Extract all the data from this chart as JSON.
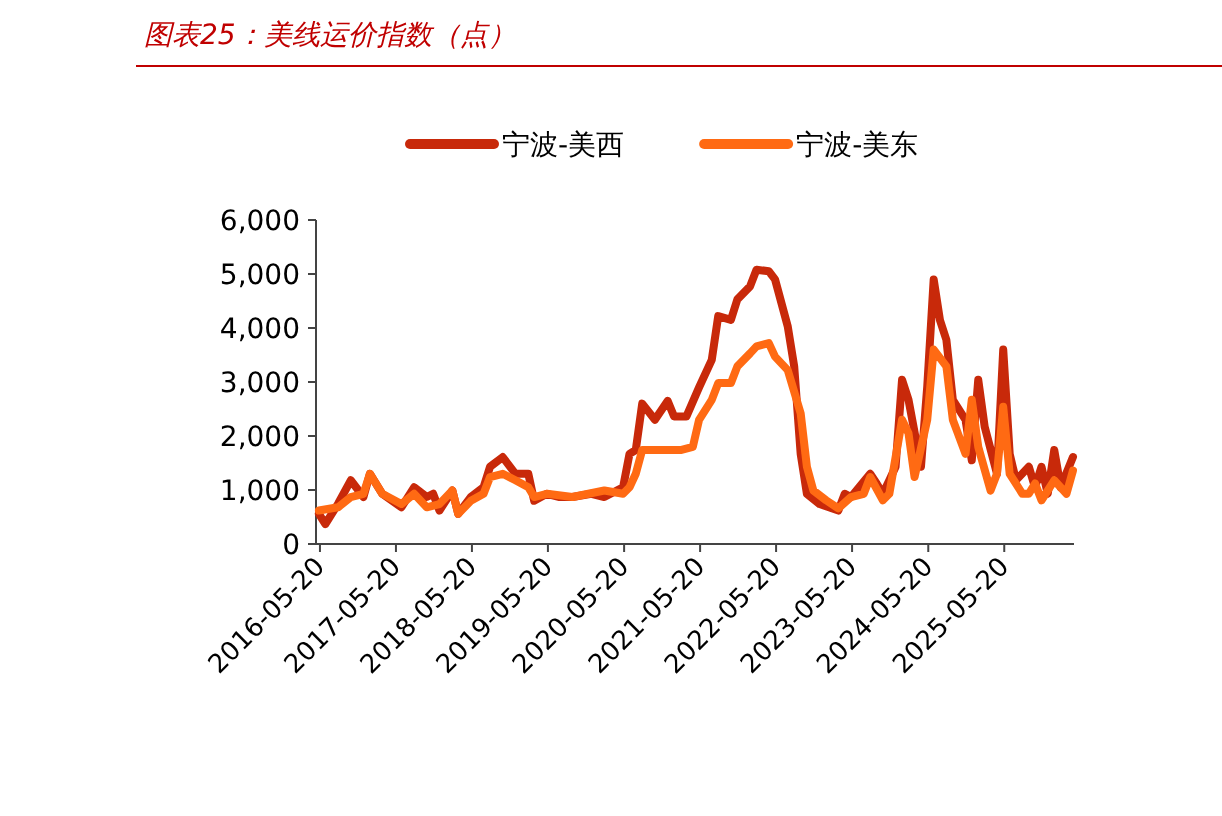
{
  "chart_data": {
    "type": "line",
    "title": "图表25：美线运价指数（点）",
    "xlim": [
      "2016-05-01",
      "2026-04-20"
    ],
    "xticks": [
      "2016-05-20",
      "2017-05-20",
      "2018-05-20",
      "2019-05-20",
      "2020-05-20",
      "2021-05-20",
      "2022-05-20",
      "2023-05-20",
      "2024-05-20",
      "2025-05-20"
    ],
    "ylim": [
      0,
      6000
    ],
    "yticks": [
      0,
      {
        "value": 1000,
        "label": "1,000"
      },
      {
        "value": 2000,
        "label": "2,000"
      },
      {
        "value": 3000,
        "label": "3,000"
      },
      {
        "value": 4000,
        "label": "4,000"
      },
      {
        "value": 5000,
        "label": "5,000"
      },
      {
        "value": 6000,
        "label": "6,000"
      }
    ],
    "legend": "top",
    "grid": false,
    "marker": "none",
    "line_style": "solid",
    "series": [
      {
        "name": "宁波-美西",
        "color": "#c8290a",
        "x": [
          "2016-05",
          "2016-06",
          "2016-08",
          "2016-10",
          "2016-12",
          "2017-01",
          "2017-03",
          "2017-06",
          "2017-08",
          "2017-10",
          "2017-11",
          "2017-12",
          "2018-02",
          "2018-03",
          "2018-05",
          "2018-07",
          "2018-08",
          "2018-10",
          "2018-12",
          "2019-02",
          "2019-03",
          "2019-05",
          "2019-07",
          "2019-09",
          "2019-12",
          "2020-02",
          "2020-05",
          "2020-06",
          "2020-07",
          "2020-08",
          "2020-10",
          "2020-12",
          "2021-01",
          "2021-03",
          "2021-05",
          "2021-07",
          "2021-08",
          "2021-10",
          "2021-11",
          "2022-01",
          "2022-02",
          "2022-04",
          "2022-05",
          "2022-07",
          "2022-08",
          "2022-09",
          "2022-10",
          "2022-12",
          "2023-03",
          "2023-04",
          "2023-05",
          "2023-08",
          "2023-09",
          "2023-10",
          "2023-11",
          "2023-12",
          "2024-01",
          "2024-02",
          "2024-04",
          "2024-05",
          "2024-06",
          "2024-07",
          "2024-08",
          "2024-09",
          "2024-11",
          "2024-12",
          "2025-01",
          "2025-02",
          "2025-04",
          "2025-05",
          "2025-06",
          "2025-07",
          "2025-09",
          "2025-10",
          "2025-11",
          "2025-12",
          "2026-01",
          "2026-02",
          "2026-04"
        ],
        "values": [
          560,
          370,
          745,
          1180,
          870,
          1300,
          930,
          680,
          1050,
          870,
          930,
          620,
          990,
          560,
          870,
          1050,
          1430,
          1610,
          1300,
          1300,
          800,
          930,
          870,
          870,
          930,
          870,
          1050,
          1670,
          1740,
          2600,
          2300,
          2650,
          2360,
          2360,
          2900,
          3410,
          4220,
          4150,
          4530,
          4770,
          5080,
          5050,
          4900,
          4030,
          3290,
          1670,
          930,
          740,
          620,
          930,
          870,
          1300,
          1120,
          930,
          1180,
          1430,
          3040,
          2670,
          1430,
          2910,
          4900,
          4150,
          3780,
          2670,
          2300,
          1550,
          3040,
          2170,
          1300,
          3600,
          1670,
          1180,
          1430,
          1050,
          1430,
          930,
          1740,
          1050,
          1610
        ]
      },
      {
        "name": "宁波-美东",
        "color": "#ff6a13",
        "x": [
          "2016-05",
          "2016-08",
          "2016-10",
          "2016-12",
          "2017-01",
          "2017-03",
          "2017-06",
          "2017-08",
          "2017-10",
          "2017-12",
          "2018-02",
          "2018-03",
          "2018-05",
          "2018-07",
          "2018-08",
          "2018-10",
          "2018-12",
          "2019-02",
          "2019-03",
          "2019-05",
          "2019-09",
          "2020-02",
          "2020-05",
          "2020-06",
          "2020-07",
          "2020-08",
          "2020-11",
          "2021-02",
          "2021-04",
          "2021-05",
          "2021-07",
          "2021-08",
          "2021-10",
          "2021-11",
          "2022-01",
          "2022-02",
          "2022-04",
          "2022-05",
          "2022-07",
          "2022-09",
          "2022-10",
          "2022-11",
          "2023-01",
          "2023-03",
          "2023-05",
          "2023-07",
          "2023-08",
          "2023-10",
          "2023-11",
          "2024-01",
          "2024-02",
          "2024-03",
          "2024-05",
          "2024-06",
          "2024-08",
          "2024-09",
          "2024-11",
          "2024-12",
          "2025-01",
          "2025-03",
          "2025-04",
          "2025-05",
          "2025-06",
          "2025-08",
          "2025-09",
          "2025-10",
          "2025-11",
          "2026-01",
          "2026-03",
          "2026-04"
        ],
        "values": [
          620,
          680,
          870,
          930,
          1300,
          930,
          740,
          930,
          680,
          740,
          990,
          560,
          800,
          930,
          1240,
          1300,
          1180,
          1050,
          870,
          930,
          870,
          990,
          930,
          1050,
          1300,
          1740,
          1740,
          1740,
          1800,
          2300,
          2670,
          2980,
          2980,
          3290,
          3530,
          3660,
          3720,
          3470,
          3220,
          2420,
          1430,
          990,
          810,
          660,
          870,
          930,
          1240,
          810,
          930,
          2300,
          2050,
          1240,
          2300,
          3600,
          3290,
          2300,
          1670,
          2670,
          1800,
          990,
          1300,
          2540,
          1300,
          930,
          930,
          1120,
          810,
          1180,
          930,
          1360
        ]
      }
    ]
  }
}
